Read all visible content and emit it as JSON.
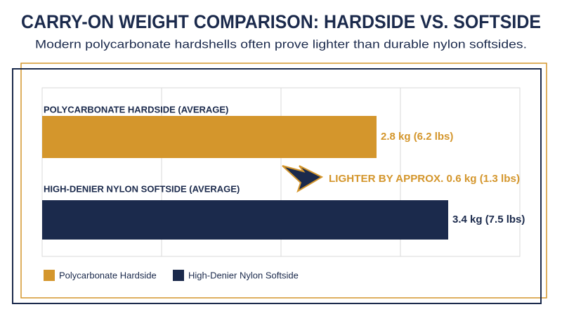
{
  "chart_data": {
    "type": "bar",
    "orientation": "horizontal",
    "title": "CARRY-ON WEIGHT COMPARISON: HARDSIDE VS. SOFTSIDE",
    "subtitle": "Modern polycarbonate hardshells often prove lighter than durable nylon softsides.",
    "series": [
      {
        "name": "Polycarbonate Hardside",
        "label": "POLYCARBONATE HARDSIDE (AVERAGE)",
        "color": "#d4962c",
        "values": [
          2.8
        ],
        "value_labels": [
          "2.8 kg (6.2 lbs)"
        ]
      },
      {
        "name": "High-Denier Nylon Softside",
        "label": "HIGH-DENIER NYLON SOFTSIDE (AVERAGE)",
        "color": "#1b2a4c",
        "values": [
          3.4
        ],
        "value_labels": [
          "3.4 kg (7.5 lbs)"
        ]
      }
    ],
    "annotation": "LIGHTER BY APPROX. 0.6 kg (1.3 lbs)",
    "xlim": [
      0,
      4
    ],
    "xticks": [
      0,
      1,
      2,
      3,
      4
    ],
    "grid": true
  }
}
